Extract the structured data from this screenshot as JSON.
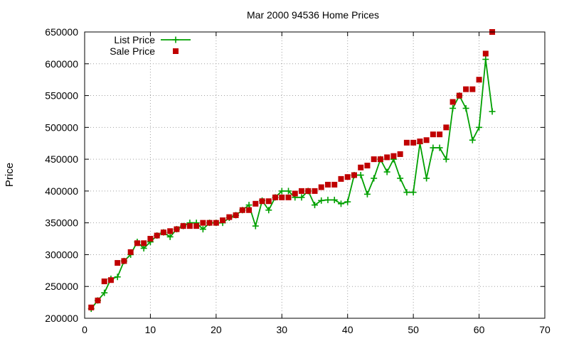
{
  "chart_data": {
    "type": "line",
    "title": "Mar 2000 94536 Home Prices",
    "xlabel": "",
    "ylabel": "Price",
    "xlim": [
      0,
      70
    ],
    "ylim": [
      200000,
      650000
    ],
    "x_ticks": [
      "0",
      "10",
      "20",
      "30",
      "40",
      "50",
      "60",
      "70"
    ],
    "y_ticks": [
      "200000",
      "250000",
      "300000",
      "350000",
      "400000",
      "450000",
      "500000",
      "550000",
      "600000",
      "650000"
    ],
    "grid": true,
    "legend_position": "top-left",
    "series": [
      {
        "name": "List Price",
        "style": "line-plus",
        "color": "#00a000",
        "x": [
          1,
          2,
          3,
          4,
          5,
          6,
          7,
          8,
          9,
          10,
          11,
          12,
          13,
          14,
          15,
          16,
          17,
          18,
          19,
          20,
          21,
          22,
          23,
          24,
          25,
          26,
          27,
          28,
          29,
          30,
          31,
          32,
          33,
          34,
          35,
          36,
          37,
          38,
          39,
          40,
          41,
          42,
          43,
          44,
          45,
          46,
          47,
          48,
          49,
          50,
          51,
          52,
          53,
          54,
          55,
          56,
          57,
          58,
          59,
          60,
          61,
          62
        ],
        "values": [
          215000,
          228000,
          240000,
          262000,
          265000,
          290000,
          300000,
          320000,
          310000,
          320000,
          330000,
          335000,
          328000,
          340000,
          345000,
          350000,
          350000,
          340000,
          350000,
          350000,
          350000,
          358000,
          362000,
          370000,
          378000,
          345000,
          385000,
          370000,
          390000,
          400000,
          400000,
          390000,
          390000,
          400000,
          378000,
          385000,
          386000,
          386000,
          380000,
          383000,
          425000,
          425000,
          395000,
          420000,
          450000,
          430000,
          450000,
          420000,
          398000,
          398000,
          475000,
          420000,
          468000,
          468000,
          450000,
          530000,
          550000,
          530000,
          480000,
          500000,
          607000,
          525000
        ]
      },
      {
        "name": "Sale Price",
        "style": "points-square",
        "color": "#c00000",
        "x": [
          1,
          2,
          3,
          4,
          5,
          6,
          7,
          8,
          9,
          10,
          11,
          12,
          13,
          14,
          15,
          16,
          17,
          18,
          19,
          20,
          21,
          22,
          23,
          24,
          25,
          26,
          27,
          28,
          29,
          30,
          31,
          32,
          33,
          34,
          35,
          36,
          37,
          38,
          39,
          40,
          41,
          42,
          43,
          44,
          45,
          46,
          47,
          48,
          49,
          50,
          51,
          52,
          53,
          54,
          55,
          56,
          57,
          58,
          59,
          60,
          61,
          62
        ],
        "values": [
          217000,
          228000,
          258000,
          260000,
          287000,
          290000,
          304000,
          318000,
          318000,
          325000,
          330000,
          335000,
          337000,
          340000,
          345000,
          345000,
          345000,
          350000,
          350000,
          350000,
          354000,
          359000,
          362000,
          370000,
          370000,
          380000,
          384000,
          384000,
          390000,
          390000,
          390000,
          396000,
          400000,
          400000,
          400000,
          406000,
          410000,
          410000,
          419000,
          422000,
          425000,
          437000,
          440000,
          450000,
          450000,
          453000,
          455000,
          458000,
          476000,
          476000,
          478000,
          480000,
          489000,
          489000,
          500000,
          540000,
          550000,
          560000,
          560000,
          575000,
          616000,
          650000
        ]
      }
    ]
  }
}
